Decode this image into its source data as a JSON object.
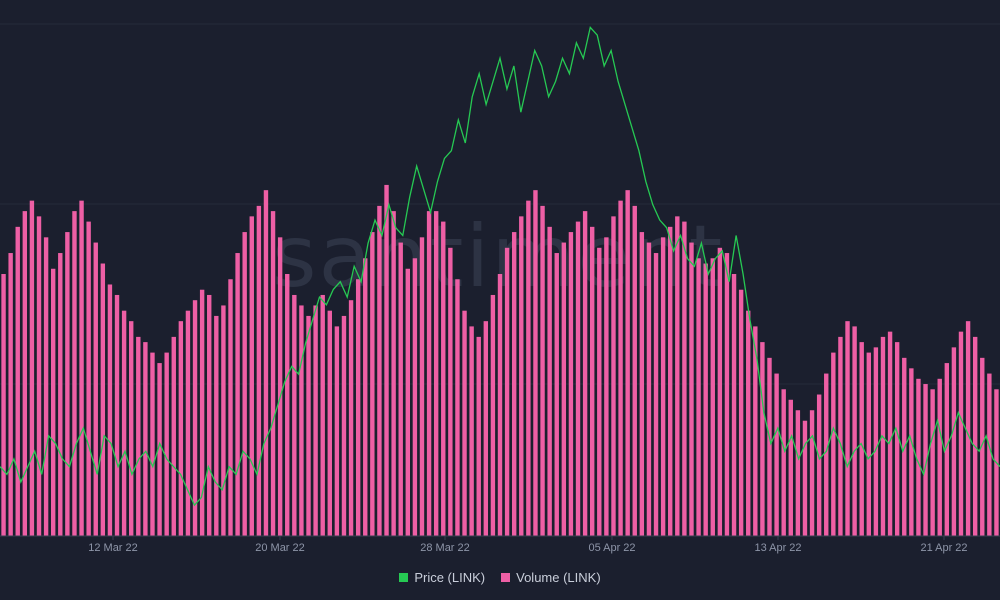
{
  "chart_data": {
    "type": "line+bar",
    "title": "",
    "watermark": "santiment",
    "xlabel": "",
    "ylabel": "",
    "x_ticks": [
      "12 Mar 22",
      "20 Mar 22",
      "28 Mar 22",
      "05 Apr 22",
      "13 Apr 22",
      "21 Apr 22"
    ],
    "series": [
      {
        "name": "Price (LINK)",
        "type": "line",
        "axis": "left",
        "color": "#26c953",
        "ylim": [
          12.0,
          18.8
        ],
        "values": [
          12.9,
          12.8,
          13.0,
          12.7,
          12.9,
          13.1,
          12.8,
          13.3,
          13.2,
          13.0,
          12.9,
          13.2,
          13.4,
          13.1,
          12.8,
          13.3,
          13.2,
          12.9,
          13.1,
          12.8,
          13.0,
          13.1,
          12.9,
          13.2,
          13.0,
          12.9,
          12.8,
          12.6,
          12.4,
          12.5,
          12.9,
          12.7,
          12.6,
          12.9,
          12.8,
          13.1,
          13.0,
          12.8,
          13.2,
          13.4,
          13.7,
          14.0,
          14.2,
          14.1,
          14.5,
          14.8,
          15.1,
          15.0,
          15.2,
          15.3,
          15.1,
          15.5,
          15.3,
          15.8,
          16.1,
          15.9,
          16.3,
          16.0,
          15.9,
          16.4,
          16.8,
          16.5,
          16.2,
          16.6,
          16.9,
          17.0,
          17.4,
          17.1,
          17.7,
          18.0,
          17.6,
          17.9,
          18.2,
          17.8,
          18.1,
          17.5,
          17.9,
          18.3,
          18.1,
          17.7,
          17.9,
          18.2,
          18.0,
          18.4,
          18.2,
          18.6,
          18.5,
          18.1,
          18.3,
          17.9,
          17.6,
          17.3,
          17.0,
          16.6,
          16.3,
          16.1,
          16.0,
          15.7,
          15.9,
          15.6,
          15.5,
          15.8,
          15.4,
          15.6,
          15.7,
          15.3,
          15.9,
          15.4,
          14.8,
          14.3,
          13.6,
          13.2,
          13.4,
          13.1,
          13.3,
          13.0,
          13.2,
          13.3,
          13.0,
          13.1,
          13.4,
          13.2,
          12.9,
          13.1,
          13.2,
          13.0,
          13.1,
          13.3,
          13.2,
          13.4,
          13.1,
          13.3,
          13.0,
          12.8,
          13.2,
          13.5,
          13.1,
          13.3,
          13.6,
          13.4,
          13.2,
          13.1,
          13.3,
          13.0,
          12.9
        ]
      },
      {
        "name": "Volume (LINK)",
        "type": "bar",
        "axis": "right",
        "color": "#ee5fa5",
        "ylim": [
          0,
          100
        ],
        "values": [
          50,
          54,
          59,
          62,
          64,
          61,
          57,
          51,
          54,
          58,
          62,
          64,
          60,
          56,
          52,
          48,
          46,
          43,
          41,
          38,
          37,
          35,
          33,
          35,
          38,
          41,
          43,
          45,
          47,
          46,
          42,
          44,
          49,
          54,
          58,
          61,
          63,
          66,
          62,
          57,
          50,
          46,
          44,
          42,
          44,
          46,
          43,
          40,
          42,
          45,
          49,
          53,
          58,
          63,
          67,
          62,
          56,
          51,
          53,
          57,
          62,
          62,
          60,
          55,
          49,
          43,
          40,
          38,
          41,
          46,
          50,
          55,
          58,
          61,
          64,
          66,
          63,
          59,
          54,
          56,
          58,
          60,
          62,
          59,
          55,
          57,
          61,
          64,
          66,
          63,
          58,
          56,
          54,
          57,
          59,
          61,
          60,
          56,
          53,
          52,
          53,
          55,
          54,
          50,
          47,
          43,
          40,
          37,
          34,
          31,
          28,
          26,
          24,
          22,
          24,
          27,
          31,
          35,
          38,
          41,
          40,
          37,
          35,
          36,
          38,
          39,
          37,
          34,
          32,
          30,
          29,
          28,
          30,
          33,
          36,
          39,
          41,
          38,
          34,
          31,
          28
        ]
      }
    ],
    "grid": "horizontal",
    "legend_position": "bottom-center",
    "colors": {
      "background": "#1b1f2e",
      "grid": "#262b3b",
      "tick_text": "#8e95a8",
      "legend_text": "#c9ceda",
      "watermark": "#2d3344"
    }
  }
}
